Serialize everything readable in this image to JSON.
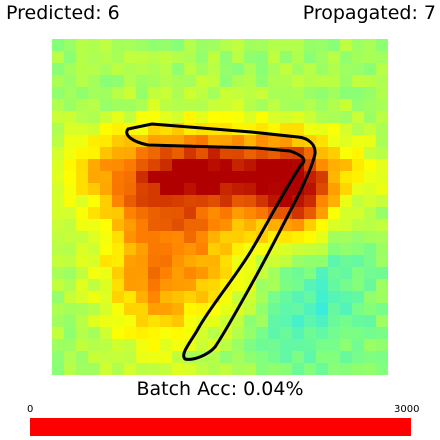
{
  "header": {
    "predicted_text": "Predicted: 6",
    "propagated_text": "Propagated: 7"
  },
  "heatmap": {
    "description_colormap": [
      "#1ee6ff",
      "#7fff7f",
      "#ffff00",
      "#ff8000",
      "#b00000"
    ]
  },
  "footer": {
    "batch_accuracy_text": "Batch Acc: 0.04%",
    "progress": {
      "min_label": "0",
      "max_label": "3000",
      "value": 3000,
      "max": 3000,
      "color": "#ff0000"
    }
  }
}
